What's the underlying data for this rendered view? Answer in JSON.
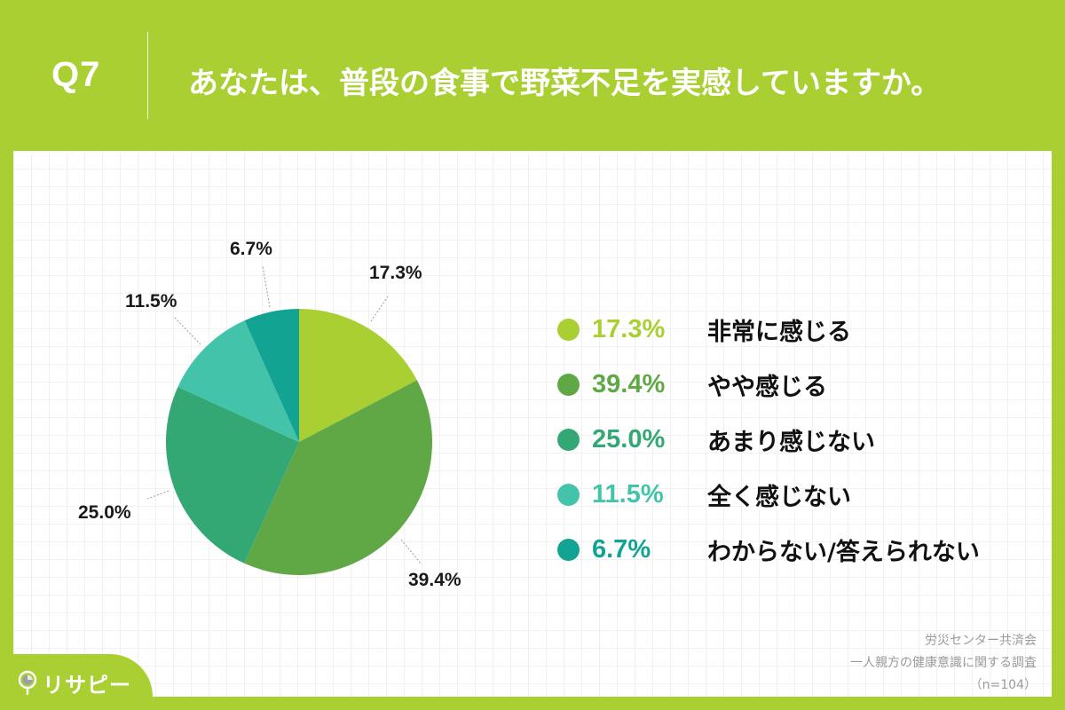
{
  "header": {
    "question_number": "Q7",
    "question_text": "あなたは、普段の食事で野菜不足を実感していますか。"
  },
  "legend": [
    {
      "percent": "17.3%",
      "label": "非常に感じる",
      "color": "#a9cf32"
    },
    {
      "percent": "39.4%",
      "label": "やや感じる",
      "color": "#60a846"
    },
    {
      "percent": "25.0%",
      "label": "あまり感じない",
      "color": "#33a874"
    },
    {
      "percent": "11.5%",
      "label": "全く感じない",
      "color": "#43c4aa"
    },
    {
      "percent": "6.7%",
      "label": "わからない/答えられない",
      "color": "#13a393"
    }
  ],
  "pie_labels": {
    "s0": "17.3%",
    "s1": "39.4%",
    "s2": "25.0%",
    "s3": "11.5%",
    "s4": "6.7%"
  },
  "source": {
    "line1": "労災センター共済会",
    "line2": "一人親方の健康意識に関する調査",
    "line3": "（n=104）"
  },
  "logo": {
    "icon": "map-pin-pie-icon",
    "text": "リサピー"
  },
  "chart_data": {
    "type": "pie",
    "title": "あなたは、普段の食事で野菜不足を実感していますか。",
    "categories": [
      "非常に感じる",
      "やや感じる",
      "あまり感じない",
      "全く感じない",
      "わからない/答えられない"
    ],
    "values": [
      17.3,
      39.4,
      25.0,
      11.5,
      6.7
    ],
    "colors": [
      "#a9cf32",
      "#60a846",
      "#33a874",
      "#43c4aa",
      "#13a393"
    ],
    "start_angle": "12 o'clock, clockwise",
    "legend_position": "right",
    "n": 104,
    "source": "労災センター共済会 一人親方の健康意識に関する調査"
  }
}
